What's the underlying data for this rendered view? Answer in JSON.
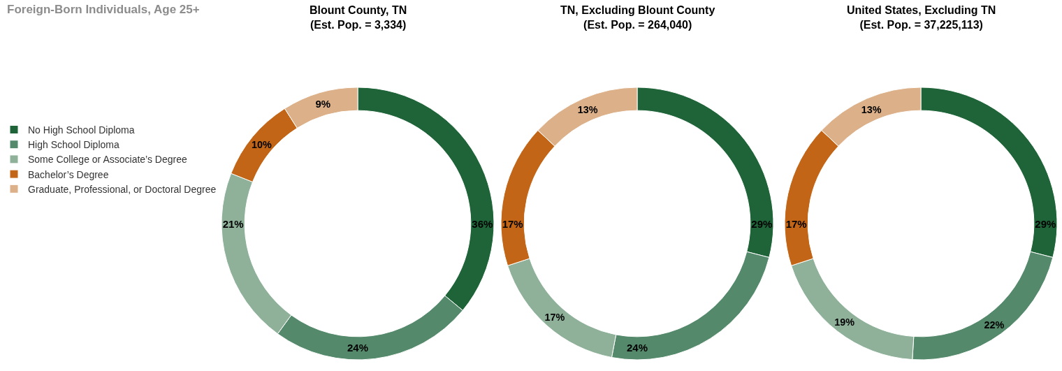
{
  "chart_data": [
    {
      "type": "donut",
      "title": "Blount County, TN\n(Est. Pop. = 3,334)",
      "annotations": [
        "Foreign-Born Individuals, Age 25+"
      ],
      "legend": "left",
      "categories": [
        "No High School Diploma",
        "High School Diploma",
        "Some College or Associate’s Degree",
        "Bachelor’s Degree",
        "Graduate, Professional, or Doctoral Degree"
      ],
      "values": [
        36,
        24,
        21,
        10,
        9
      ],
      "colors": [
        "#1e6438",
        "#548a6b",
        "#8fb19a",
        "#c26516",
        "#dcb088"
      ],
      "value_labels": [
        "36%",
        "24%",
        "21%",
        "10%",
        "9%"
      ]
    },
    {
      "type": "donut",
      "title": "TN, Excluding Blount County\n(Est. Pop. = 264,040)",
      "categories": [
        null,
        null,
        null,
        null,
        null
      ],
      "values": [
        29,
        24,
        17,
        17,
        13
      ],
      "colors": [
        "#1e6438",
        "#548a6b",
        "#8fb19a",
        "#c26516",
        "#dcb088"
      ],
      "value_labels": [
        "29%",
        "24%",
        "17%",
        "17%",
        "13%"
      ]
    },
    {
      "type": "donut",
      "title": "United States, Excluding TN\n(Est. Pop. = 37,225,113)",
      "categories": [
        null,
        null,
        null,
        null,
        null
      ],
      "values": [
        29,
        22,
        19,
        17,
        13
      ],
      "colors": [
        "#1e6438",
        "#548a6b",
        "#8fb19a",
        "#c26516",
        "#dcb088"
      ],
      "value_labels": [
        "29%",
        "22%",
        "19%",
        "17%",
        "13%"
      ]
    }
  ]
}
